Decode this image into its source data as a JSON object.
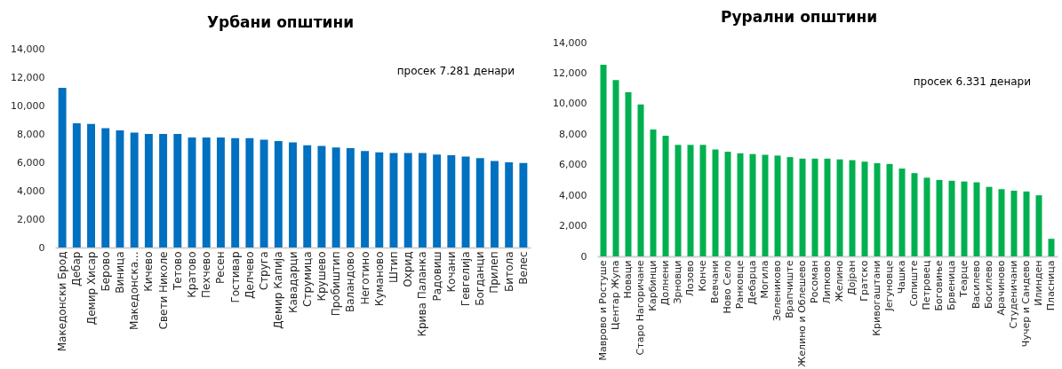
{
  "chart_data": [
    {
      "type": "bar",
      "title": "Урбани општини",
      "categories": [
        "Македонски Брод",
        "Дебар",
        "Демир Хисар",
        "Берово",
        "Виница",
        "Македонска...",
        "Кичево",
        "Свети Николе",
        "Тетово",
        "Кратово",
        "Пехчево",
        "Ресен",
        "Гостивар",
        "Делчево",
        "Струга",
        "Демир Капија",
        "Кавадарци",
        "Струмица",
        "Крушево",
        "Пробиштип",
        "Валандово",
        "Неготино",
        "Куманово",
        "Штип",
        "Охрид",
        "Крива Паланка",
        "Радовиш",
        "Кочани",
        "Гевгелија",
        "Богданци",
        "Прилеп",
        "Битола",
        "Велес"
      ],
      "values": [
        11250,
        8750,
        8700,
        8400,
        8250,
        8100,
        8000,
        8000,
        8000,
        7750,
        7750,
        7750,
        7700,
        7700,
        7600,
        7500,
        7400,
        7200,
        7150,
        7050,
        7000,
        6800,
        6700,
        6650,
        6650,
        6650,
        6550,
        6500,
        6400,
        6300,
        6100,
        6000,
        5950
      ],
      "color": "#0070c0",
      "ylim": [
        0,
        14000
      ],
      "yticks": [
        0,
        {
          "value": 2000,
          "label": "2,000"
        },
        {
          "value": 4000,
          "label": "4,000"
        },
        {
          "value": 6000,
          "label": "6,000"
        },
        {
          "value": 8000,
          "label": "8,000"
        },
        {
          "value": 10000,
          "label": "10,000"
        },
        {
          "value": 12000,
          "label": "12,000"
        },
        {
          "value": 14000,
          "label": "14,000"
        }
      ],
      "annotations": [
        "просек 7.281 денари"
      ],
      "grid": false
    },
    {
      "type": "bar",
      "title": "Рурални општини",
      "categories": [
        "Маврово и Ростуше",
        "Центар Жупа",
        "Новаци",
        "Старо Нагоричане",
        "Карбинци",
        "Долнени",
        "Зрновци",
        "Лозово",
        "Конче",
        "Вевчани",
        "Ново Село",
        "Ранковце",
        "Дебарца",
        "Могила",
        "Зелениково",
        "Врапчиште",
        "Желино и Облешево",
        "Росоман",
        "Липково",
        "Желино",
        "Дојран",
        "Гратско",
        "Кривогаштани",
        "Јегуновце",
        "Чашка",
        "Сопиште",
        "Петровец",
        "Боговиње",
        "Брвеница",
        "Теарце",
        "Василево",
        "Босилево",
        "Арачиново",
        "Студеничани",
        "Чучер и Сандево",
        "Илинден",
        "Пласница"
      ],
      "values": [
        12550,
        11550,
        10750,
        9950,
        8300,
        7900,
        7300,
        7300,
        7300,
        7000,
        6850,
        6750,
        6700,
        6650,
        6600,
        6500,
        6400,
        6400,
        6400,
        6350,
        6300,
        6200,
        6100,
        6050,
        5750,
        5450,
        5150,
        5000,
        4950,
        4900,
        4850,
        4550,
        4400,
        4300,
        4250,
        4000,
        1150
      ],
      "color": "#00b050",
      "ylim": [
        0,
        14000
      ],
      "yticks": [
        0,
        {
          "value": 2000,
          "label": "2,000"
        },
        {
          "value": 4000,
          "label": "4,000"
        },
        {
          "value": 6000,
          "label": "6,000"
        },
        {
          "value": 8000,
          "label": "8,000"
        },
        {
          "value": 10000,
          "label": "10,000"
        },
        {
          "value": 12000,
          "label": "12,000"
        },
        {
          "value": 14000,
          "label": "14,000"
        }
      ],
      "annotations": [
        "просек 6.331 денари"
      ],
      "grid": false
    }
  ]
}
